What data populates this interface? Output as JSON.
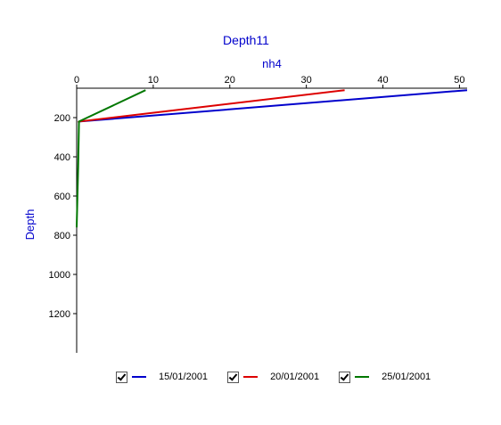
{
  "chart_data": {
    "type": "line",
    "title": "Depth11",
    "xlabel": "nh4",
    "ylabel": "Depth",
    "xlim": [
      0,
      51
    ],
    "ylim": [
      1400,
      50
    ],
    "x_ticks": [
      0,
      10,
      20,
      30,
      40,
      50
    ],
    "y_ticks": [
      200,
      400,
      600,
      800,
      1000,
      1200
    ],
    "y_inverted": true,
    "x_axis_position": "top",
    "grid": false,
    "legend_position": "bottom",
    "colors": {
      "title": "#0000cc",
      "axis_title": "#0000cc"
    },
    "series": [
      {
        "name": "15/01/2001",
        "color": "#0000cc",
        "points": [
          {
            "x": 51,
            "y": 60
          },
          {
            "x": 0.3,
            "y": 220
          },
          {
            "x": 0.2,
            "y": 225
          }
        ]
      },
      {
        "name": "20/01/2001",
        "color": "#dd0000",
        "points": [
          {
            "x": 35,
            "y": 60
          },
          {
            "x": 0.3,
            "y": 220
          },
          {
            "x": 0.2,
            "y": 225
          }
        ]
      },
      {
        "name": "25/01/2001",
        "color": "#007700",
        "points": [
          {
            "x": 9,
            "y": 60
          },
          {
            "x": 0.3,
            "y": 220
          },
          {
            "x": 0.2,
            "y": 450
          },
          {
            "x": 0,
            "y": 760
          }
        ]
      }
    ]
  }
}
